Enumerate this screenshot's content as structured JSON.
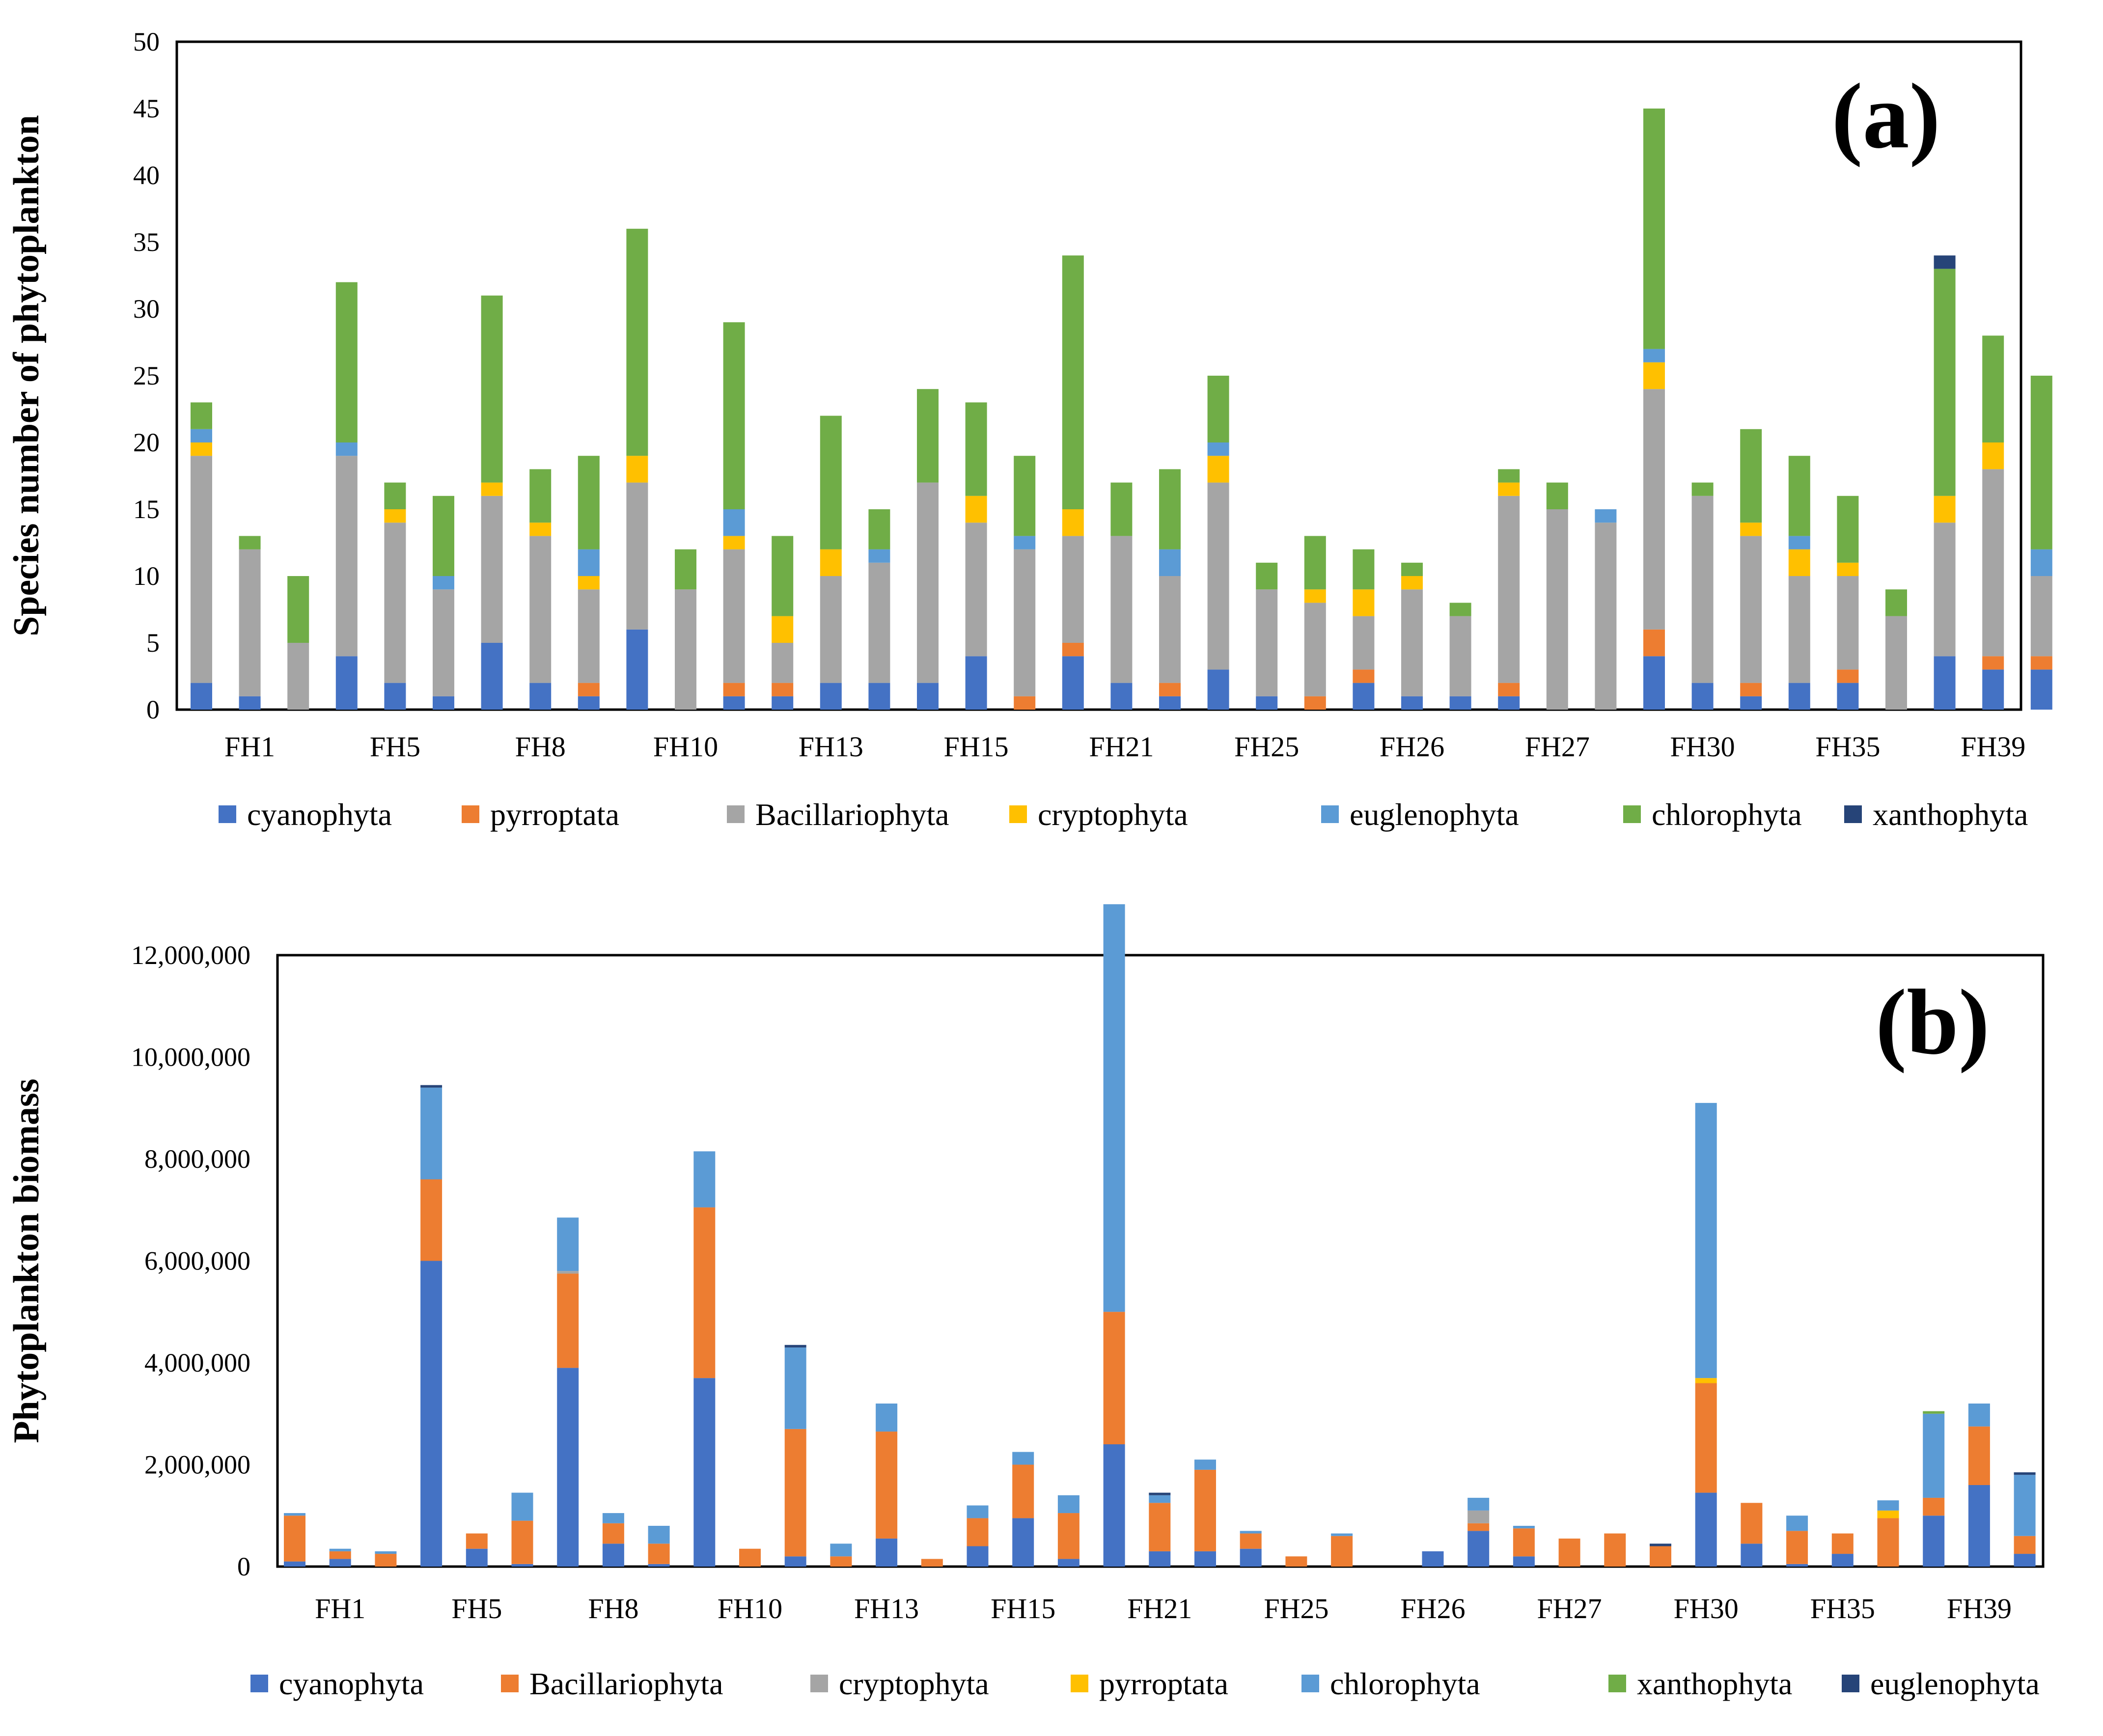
{
  "chart_data": [
    {
      "type": "bar",
      "stacked": true,
      "panel_label": "(a)",
      "ylabel": "Species number of phytoplankton",
      "xlabel": "",
      "ylim": [
        0,
        50
      ],
      "yticks": [
        "0",
        "5",
        "10",
        "15",
        "20",
        "25",
        "30",
        "35",
        "40",
        "45",
        "50"
      ],
      "ytick_values": [
        0,
        5,
        10,
        15,
        20,
        25,
        30,
        35,
        40,
        45,
        50
      ],
      "category_labels": [
        "FH1",
        "FH5",
        "FH8",
        "FH10",
        "FH13",
        "FH15",
        "FH21",
        "FH25",
        "FH26",
        "FH27",
        "FH30",
        "FH35",
        "FH39"
      ],
      "legend_placement": "bottom",
      "grid": false,
      "series": [
        {
          "name": "cyanophyta",
          "color": "#4472C4",
          "values": [
            2,
            1,
            0,
            4,
            2,
            1,
            5,
            2,
            1,
            6,
            0,
            1,
            1,
            2,
            2,
            2,
            4,
            0,
            4,
            2,
            1,
            3,
            1,
            0,
            2,
            1,
            1,
            1,
            0,
            0,
            4,
            2,
            1,
            2,
            2,
            0,
            4,
            3,
            3
          ]
        },
        {
          "name": "pyrroptata",
          "color": "#ED7D31",
          "values": [
            0,
            0,
            0,
            0,
            0,
            0,
            0,
            0,
            1,
            0,
            0,
            1,
            1,
            0,
            0,
            0,
            0,
            1,
            1,
            0,
            1,
            0,
            0,
            1,
            1,
            0,
            0,
            1,
            0,
            0,
            2,
            0,
            1,
            0,
            1,
            0,
            0,
            1,
            1
          ]
        },
        {
          "name": "Bacillariophyta",
          "color": "#A5A5A5",
          "values": [
            17,
            11,
            5,
            15,
            12,
            8,
            11,
            11,
            7,
            11,
            9,
            10,
            3,
            8,
            9,
            15,
            10,
            11,
            8,
            11,
            8,
            14,
            8,
            7,
            4,
            8,
            6,
            14,
            15,
            14,
            18,
            14,
            11,
            8,
            7,
            7,
            10,
            14,
            6
          ]
        },
        {
          "name": "cryptophyta",
          "color": "#FFC000",
          "values": [
            1,
            0,
            0,
            0,
            1,
            0,
            1,
            1,
            1,
            2,
            0,
            1,
            2,
            2,
            0,
            0,
            2,
            0,
            2,
            0,
            0,
            2,
            0,
            1,
            2,
            1,
            0,
            1,
            0,
            0,
            2,
            0,
            1,
            2,
            1,
            0,
            2,
            2,
            0
          ]
        },
        {
          "name": "euglenophyta",
          "color": "#5B9BD5",
          "values": [
            1,
            0,
            0,
            1,
            0,
            1,
            0,
            0,
            2,
            0,
            0,
            2,
            0,
            0,
            1,
            0,
            0,
            1,
            0,
            0,
            2,
            1,
            0,
            0,
            0,
            0,
            0,
            0,
            0,
            1,
            1,
            0,
            0,
            1,
            0,
            0,
            0,
            0,
            2
          ]
        },
        {
          "name": "chlorophyta",
          "color": "#70AD47",
          "values": [
            2,
            1,
            5,
            12,
            2,
            6,
            14,
            4,
            7,
            17,
            3,
            14,
            6,
            10,
            3,
            7,
            7,
            6,
            19,
            4,
            6,
            5,
            2,
            4,
            3,
            1,
            1,
            1,
            2,
            0,
            18,
            1,
            7,
            6,
            5,
            2,
            17,
            8,
            13
          ]
        },
        {
          "name": "xanthophyta",
          "color": "#264478",
          "values": [
            0,
            0,
            0,
            0,
            0,
            0,
            0,
            0,
            0,
            0,
            0,
            0,
            0,
            0,
            0,
            0,
            0,
            0,
            0,
            0,
            0,
            0,
            0,
            0,
            0,
            0,
            0,
            0,
            0,
            0,
            0,
            0,
            0,
            0,
            0,
            0,
            1,
            0,
            0
          ]
        }
      ]
    },
    {
      "type": "bar",
      "stacked": true,
      "panel_label": "(b)",
      "ylabel": "Phytoplankton biomass",
      "xlabel": "",
      "ylim": [
        0,
        12000000
      ],
      "yticks": [
        "0",
        "2,000,000",
        "4,000,000",
        "6,000,000",
        "8,000,000",
        "10,000,000",
        "12,000,000"
      ],
      "ytick_values": [
        0,
        2000000,
        4000000,
        6000000,
        8000000,
        10000000,
        12000000
      ],
      "category_labels": [
        "FH1",
        "FH5",
        "FH8",
        "FH10",
        "FH13",
        "FH15",
        "FH21",
        "FH25",
        "FH26",
        "FH27",
        "FH30",
        "FH35",
        "FH39"
      ],
      "legend_placement": "bottom",
      "grid": false,
      "series": [
        {
          "name": "cyanophyta",
          "color": "#4472C4",
          "values": [
            100000,
            150000,
            0,
            6000000,
            350000,
            50000,
            3900000,
            450000,
            50000,
            3700000,
            0,
            200000,
            0,
            550000,
            0,
            400000,
            950000,
            150000,
            2400000,
            300000,
            300000,
            350000,
            0,
            0,
            0,
            300000,
            700000,
            200000,
            0,
            0,
            0,
            1450000,
            450000,
            50000,
            250000,
            0,
            1000000,
            1600000,
            250000
          ]
        },
        {
          "name": "Bacillariophyta",
          "color": "#ED7D31",
          "values": [
            900000,
            150000,
            250000,
            1600000,
            300000,
            850000,
            1850000,
            400000,
            400000,
            3350000,
            350000,
            2500000,
            200000,
            2100000,
            150000,
            550000,
            1050000,
            900000,
            2600000,
            950000,
            1600000,
            300000,
            200000,
            600000,
            0,
            0,
            150000,
            550000,
            550000,
            650000,
            400000,
            2150000,
            800000,
            650000,
            400000,
            950000,
            350000,
            1150000,
            350000
          ]
        },
        {
          "name": "cryptophyta",
          "color": "#A5A5A5",
          "values": [
            0,
            0,
            0,
            0,
            0,
            0,
            50000,
            0,
            0,
            0,
            0,
            0,
            0,
            0,
            0,
            0,
            0,
            0,
            0,
            0,
            0,
            0,
            0,
            0,
            0,
            0,
            250000,
            0,
            0,
            0,
            0,
            0,
            0,
            0,
            0,
            0,
            0,
            0,
            0
          ]
        },
        {
          "name": "pyrroptata",
          "color": "#FFC000",
          "values": [
            0,
            0,
            0,
            0,
            0,
            0,
            0,
            0,
            0,
            0,
            0,
            0,
            0,
            0,
            0,
            0,
            0,
            0,
            0,
            0,
            0,
            0,
            0,
            0,
            0,
            0,
            0,
            0,
            0,
            0,
            0,
            100000,
            0,
            0,
            0,
            150000,
            0,
            0,
            0
          ]
        },
        {
          "name": "chlorophyta",
          "color": "#5B9BD5",
          "values": [
            50000,
            50000,
            50000,
            1800000,
            0,
            550000,
            1050000,
            200000,
            350000,
            1100000,
            0,
            1600000,
            250000,
            550000,
            0,
            250000,
            250000,
            350000,
            8000000,
            150000,
            200000,
            50000,
            0,
            50000,
            0,
            0,
            250000,
            50000,
            0,
            0,
            0,
            5400000,
            0,
            300000,
            0,
            200000,
            1650000,
            450000,
            1200000
          ]
        },
        {
          "name": "xanthophyta",
          "color": "#70AD47",
          "values": [
            0,
            0,
            0,
            0,
            0,
            0,
            0,
            0,
            0,
            0,
            0,
            0,
            0,
            0,
            0,
            0,
            0,
            0,
            0,
            0,
            0,
            0,
            0,
            0,
            0,
            0,
            0,
            0,
            0,
            0,
            0,
            0,
            0,
            0,
            0,
            0,
            50000,
            0,
            0
          ]
        },
        {
          "name": "euglenophyta",
          "color": "#264478",
          "values": [
            0,
            0,
            0,
            50000,
            0,
            0,
            0,
            0,
            0,
            0,
            0,
            50000,
            0,
            0,
            0,
            0,
            0,
            0,
            0,
            50000,
            0,
            0,
            0,
            0,
            0,
            0,
            0,
            0,
            0,
            0,
            50000,
            0,
            0,
            0,
            0,
            0,
            0,
            0,
            50000
          ]
        }
      ]
    }
  ]
}
